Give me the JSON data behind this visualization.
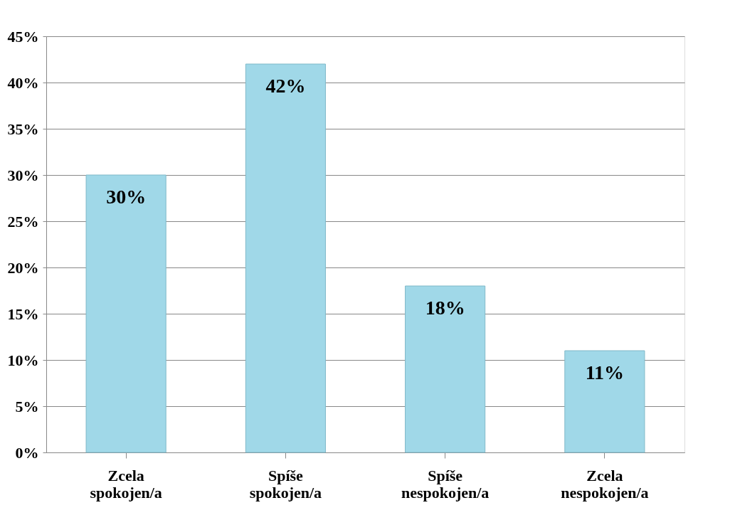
{
  "chart_data": {
    "type": "bar",
    "categories": [
      "Zcela spokojen/a",
      "Spíše spokojen/a",
      "Spíše nespokojen/a",
      "Zcela nespokojen/a"
    ],
    "values": [
      30,
      42,
      18,
      11
    ],
    "value_labels": [
      "30%",
      "42%",
      "18%",
      "11%"
    ],
    "color": "#a0d8e8",
    "ylim": [
      0,
      45
    ],
    "yticks": [
      {
        "value": 0,
        "label": "0%"
      },
      {
        "value": 5,
        "label": "5%"
      },
      {
        "value": 10,
        "label": "10%"
      },
      {
        "value": 15,
        "label": "15%"
      },
      {
        "value": 20,
        "label": "20%"
      },
      {
        "value": 25,
        "label": "25%"
      },
      {
        "value": 30,
        "label": "30%"
      },
      {
        "value": 35,
        "label": "35%"
      },
      {
        "value": 40,
        "label": "40%"
      },
      {
        "value": 45,
        "label": "45%"
      }
    ],
    "grid": "y"
  }
}
